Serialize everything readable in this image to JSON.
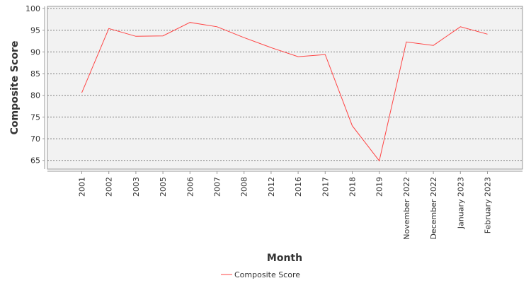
{
  "chart_data": {
    "type": "line",
    "xlabel": "Month",
    "ylabel": "Composite Score",
    "categories": [
      "2001",
      "2002",
      "2003",
      "2005",
      "2006",
      "2007",
      "2008",
      "2012",
      "2016",
      "2017",
      "2018",
      "2019",
      "November 2022",
      "December 2022",
      "January 2023",
      "February 2023"
    ],
    "series": [
      {
        "name": "Composite Score",
        "color": "#ff4444",
        "values": [
          80.6,
          95.4,
          93.6,
          93.7,
          96.8,
          95.8,
          93.3,
          91.0,
          88.9,
          89.4,
          73.0,
          64.9,
          92.3,
          91.5,
          95.8,
          94.1
        ]
      }
    ],
    "ylim": [
      63,
      100.5
    ],
    "yticks": [
      65,
      70,
      75,
      80,
      85,
      90,
      95,
      100
    ],
    "grid": true,
    "legend_position": "bottom"
  }
}
